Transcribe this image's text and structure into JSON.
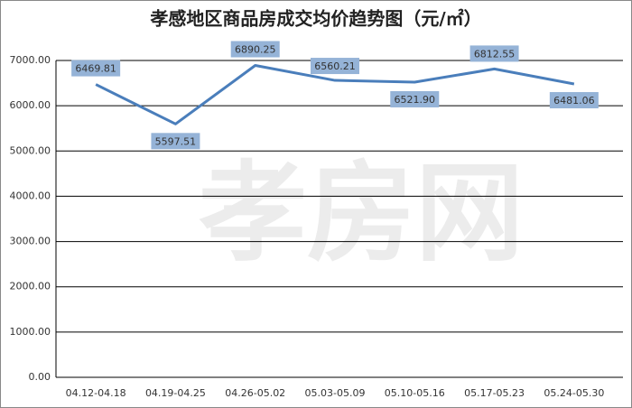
{
  "chart_data": {
    "type": "line",
    "title": "孝感地区商品房成交均价趋势图（元/㎡）",
    "watermark": "孝房网",
    "categories": [
      "04.12-04.18",
      "04.19-04.25",
      "04.26-05.02",
      "05.03-05.09",
      "05.10-05.16",
      "05.17-05.23",
      "05.24-05.30"
    ],
    "series": [
      {
        "name": "均价",
        "color": "#4a7ebb",
        "values": [
          6469.81,
          5597.51,
          6890.25,
          6560.21,
          6521.9,
          6812.55,
          6481.06
        ],
        "value_labels": [
          "6469.81",
          "5597.51",
          "6890.25",
          "6560.21",
          "6521.90",
          "6812.55",
          "6481.06"
        ]
      }
    ],
    "ylim": [
      0,
      7000
    ],
    "yticks": [
      {
        "value": 0,
        "label": "0.00"
      },
      {
        "value": 1000,
        "label": "1000.00"
      },
      {
        "value": 2000,
        "label": "2000.00"
      },
      {
        "value": 3000,
        "label": "3000.00"
      },
      {
        "value": 4000,
        "label": "4000.00"
      },
      {
        "value": 5000,
        "label": "5000.00"
      },
      {
        "value": 6000,
        "label": "6000.00"
      },
      {
        "value": 7000,
        "label": "7000.00"
      }
    ],
    "grid": true,
    "label_color": "#95b3d7"
  }
}
